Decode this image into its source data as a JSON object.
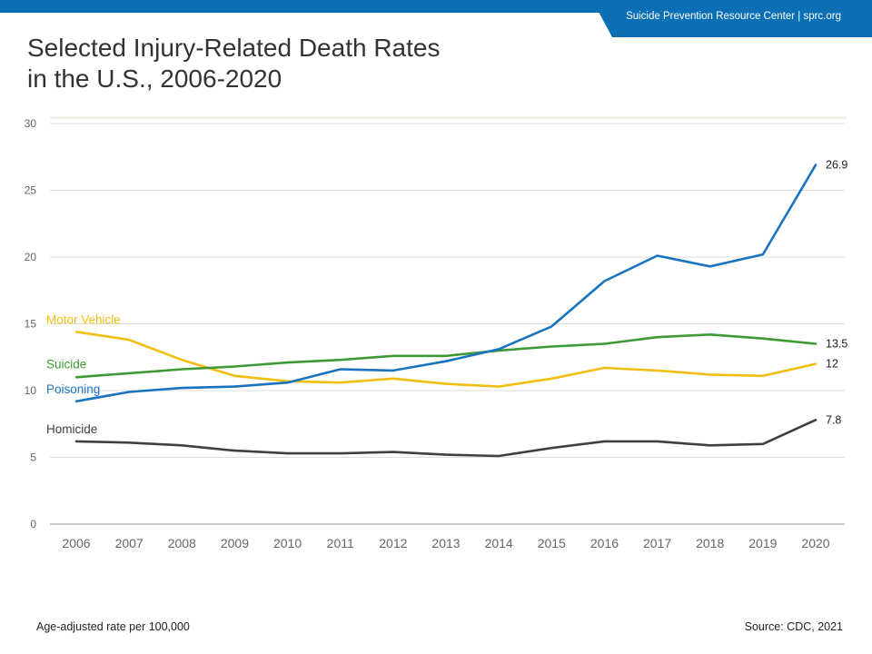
{
  "header": {
    "banner_text": "Suicide Prevention Resource Center  |  sprc.org",
    "title_line1": "Selected Injury-Related Death Rates",
    "title_line2": "in the U.S., 2006-2020"
  },
  "footer": {
    "ylabel_note": "Age-adjusted rate per 100,000",
    "source": "Source: CDC, 2021"
  },
  "colors": {
    "brand": "#0A6FB4",
    "motor_vehicle": "#F2BE12",
    "suicide": "#3F9A35",
    "poisoning": "#1A73BF",
    "homicide": "#404040",
    "grid": "#dddddd"
  },
  "chart_data": {
    "type": "line",
    "title": "Selected Injury-Related Death Rates in the U.S., 2006-2020",
    "xlabel": "",
    "ylabel": "Age-adjusted rate per 100,000",
    "ylim": [
      0,
      30
    ],
    "yticks": [
      "0",
      "5",
      "10",
      "15",
      "20",
      "25",
      "30"
    ],
    "grid": true,
    "legend": "inline labels at left",
    "categories": [
      "2006",
      "2007",
      "2008",
      "2009",
      "2010",
      "2011",
      "2012",
      "2013",
      "2014",
      "2015",
      "2016",
      "2017",
      "2018",
      "2019",
      "2020"
    ],
    "series": [
      {
        "name": "Motor Vehicle",
        "color_key": "motor_vehicle",
        "end_label": "12",
        "values": [
          14.4,
          13.8,
          12.3,
          11.1,
          10.7,
          10.6,
          10.9,
          10.5,
          10.3,
          10.9,
          11.7,
          11.5,
          11.2,
          11.1,
          12.0
        ]
      },
      {
        "name": "Suicide",
        "color_key": "suicide",
        "end_label": "13.5",
        "values": [
          11.0,
          11.3,
          11.6,
          11.8,
          12.1,
          12.3,
          12.6,
          12.6,
          13.0,
          13.3,
          13.5,
          14.0,
          14.2,
          13.9,
          13.5
        ]
      },
      {
        "name": "Poisoning",
        "color_key": "poisoning",
        "end_label": "26.9",
        "values": [
          9.2,
          9.9,
          10.2,
          10.3,
          10.6,
          11.6,
          11.5,
          12.2,
          13.1,
          14.8,
          18.2,
          20.1,
          19.3,
          20.2,
          26.9
        ]
      },
      {
        "name": "Homicide",
        "color_key": "homicide",
        "end_label": "7.8",
        "values": [
          6.2,
          6.1,
          5.9,
          5.5,
          5.3,
          5.3,
          5.4,
          5.2,
          5.1,
          5.7,
          6.2,
          6.2,
          5.9,
          6.0,
          7.8
        ]
      }
    ]
  }
}
